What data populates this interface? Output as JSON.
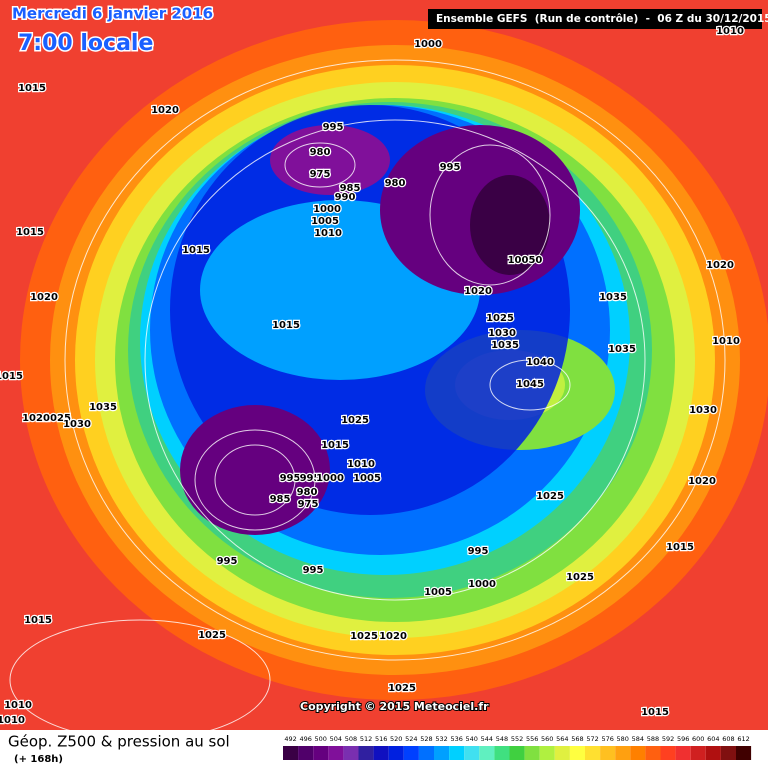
{
  "header": {
    "date": "Mercredi 6 janvier 2016",
    "time": "7:00 locale",
    "run": "Ensemble GEFS  (Run de contrôle)  -  06 Z du 30/12/2015"
  },
  "footer": {
    "title": "Géop. Z500 & pression au sol",
    "lead": "(+ 168h)",
    "copyright": "Copyright © 2015 Meteociel.fr"
  },
  "isobar_labels": [
    "1000",
    "1010",
    "1015",
    "1020",
    "995",
    "980",
    "975",
    "985",
    "990",
    "980",
    "995",
    "1000",
    "1005",
    "1010",
    "1015",
    "10050",
    "1020",
    "1035",
    "1020",
    "1025",
    "1030",
    "1035",
    "1035",
    "1015",
    "1020",
    "1015",
    "1040",
    "1045",
    "1010",
    "1015",
    "1035",
    "1025",
    "1020",
    "1030",
    "1030",
    "1025",
    "1015",
    "1010",
    "995",
    "995",
    "1000",
    "1005",
    "985",
    "980",
    "975",
    "1025",
    "1020",
    "995",
    "995",
    "995",
    "1015",
    "1025",
    "1000",
    "1005",
    "1015",
    "1025",
    "1025",
    "1020",
    "1025",
    "1010",
    "1010",
    "1015"
  ],
  "legend": {
    "values": [
      492,
      496,
      500,
      504,
      508,
      512,
      516,
      520,
      524,
      528,
      532,
      536,
      540,
      544,
      548,
      552,
      556,
      560,
      564,
      568,
      572,
      576,
      580,
      584,
      588,
      592,
      596,
      600,
      604,
      608,
      612
    ],
    "colors": [
      "#3a0045",
      "#50006a",
      "#65007f",
      "#80109a",
      "#7a2fb0",
      "#3020a0",
      "#1010c0",
      "#0020e0",
      "#0040ff",
      "#0070ff",
      "#00a0ff",
      "#00d0ff",
      "#40e0f0",
      "#60f0c0",
      "#40e080",
      "#40d040",
      "#80e040",
      "#b0f040",
      "#e0f040",
      "#ffff40",
      "#ffe030",
      "#ffc020",
      "#ffa010",
      "#ff8000",
      "#ff6010",
      "#ff4020",
      "#f03030",
      "#d02020",
      "#b01010",
      "#801010",
      "#400000"
    ]
  }
}
